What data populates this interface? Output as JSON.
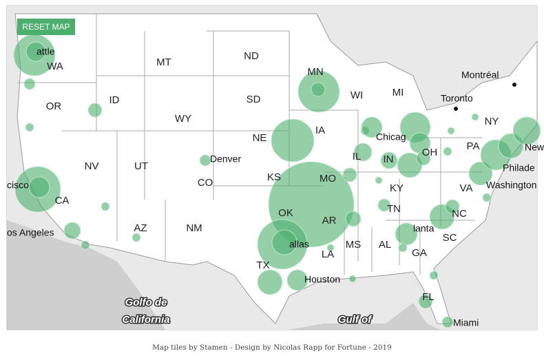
{
  "button": {
    "label": "RESET MAP"
  },
  "map": {
    "state_labels": [
      "WA",
      "MT",
      "ND",
      "MN",
      "OR",
      "ID",
      "SD",
      "WI",
      "MI",
      "WY",
      "IA",
      "NY",
      "NE",
      "PA",
      "NV",
      "UT",
      "CO",
      "KS",
      "MO",
      "IL",
      "IN",
      "OH",
      "KY",
      "VA",
      "CA",
      "AZ",
      "NM",
      "OK",
      "AR",
      "TN",
      "NC",
      "SC",
      "TX",
      "LA",
      "MS",
      "AL",
      "GA",
      "FL"
    ],
    "city_labels": [
      "attle",
      "Montréal",
      "Toronto",
      "Chicag",
      "Denver",
      "Washington",
      "Philade",
      "New",
      "os Angeles",
      "cisco",
      "allas",
      "Houston",
      "lanta",
      "Miami"
    ],
    "water_labels": [
      "Golfo de",
      "California",
      "Gulf of"
    ]
  },
  "caption": "Map tiles by Stamen - Design by Nicolas Rapp for Fortune - 2019"
}
